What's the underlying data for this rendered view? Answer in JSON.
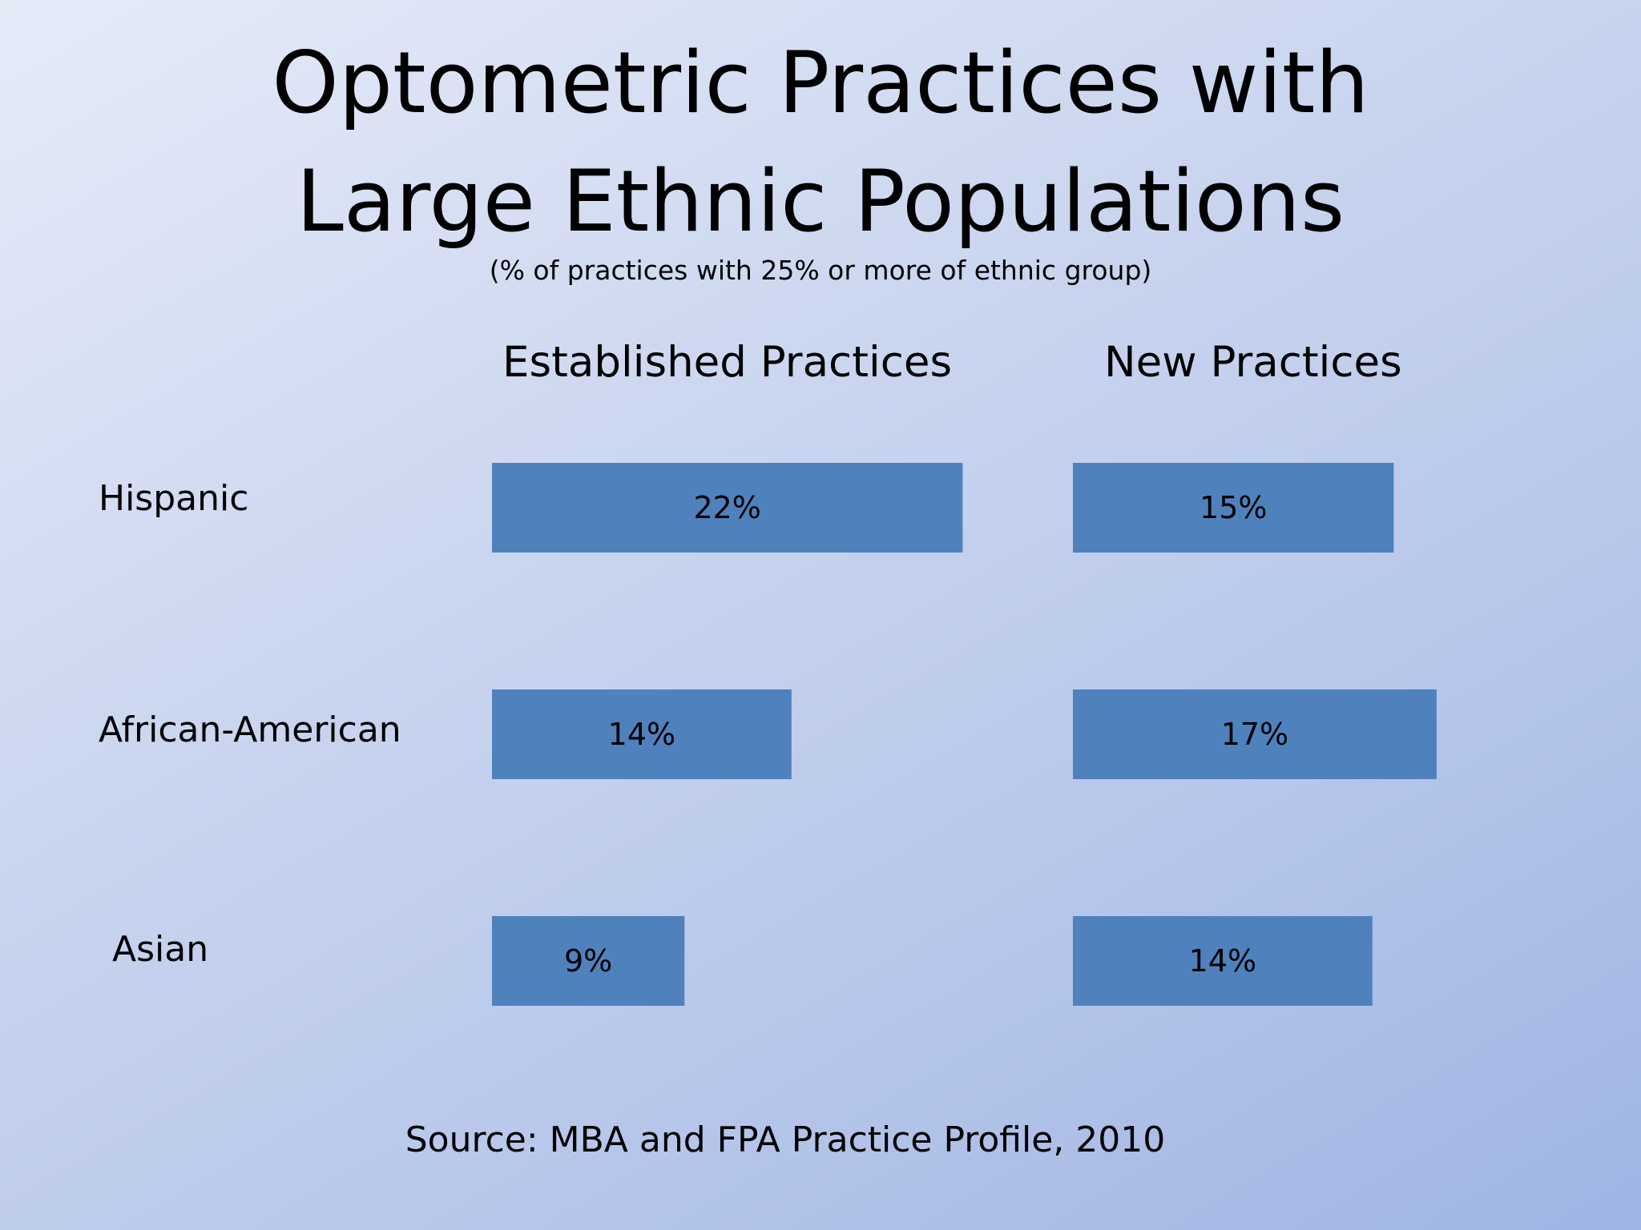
{
  "chart_data": {
    "type": "bar",
    "orientation": "horizontal",
    "title": "Optometric Practices with Large Ethnic Populations",
    "title_lines": [
      "Optometric Practices with",
      "Large Ethnic Populations"
    ],
    "subtitle": "(% of practices with 25% or more of ethnic group)",
    "categories": [
      "Hispanic",
      "African-American",
      "Asian"
    ],
    "series": [
      {
        "name": "Established Practices",
        "values": [
          22,
          14,
          9
        ],
        "labels": [
          "22%",
          "14%",
          "9%"
        ]
      },
      {
        "name": "New Practices",
        "values": [
          15,
          17,
          14
        ],
        "labels": [
          "15%",
          "17%",
          "14%"
        ]
      }
    ],
    "unit": "%",
    "grid": false,
    "legend": "none",
    "source": "Source: MBA and FPA Practice Profile, 2010",
    "bar_color": "#4f81bd"
  }
}
